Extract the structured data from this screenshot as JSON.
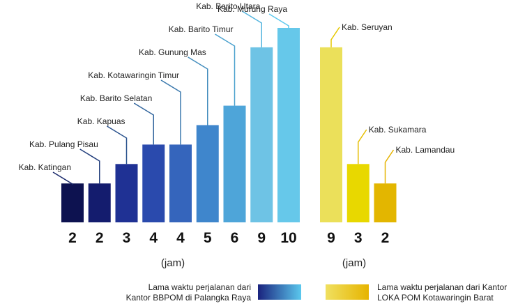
{
  "chart_data": {
    "type": "bar",
    "ylim": [
      0,
      10
    ],
    "groups": [
      {
        "unit_label": "(jam)",
        "legend": {
          "line1": "Lama waktu perjalanan dari",
          "line2": "Kantor BBPOM di Palangka Raya",
          "gradient": [
            "#1a237e",
            "#5bc8ee"
          ]
        },
        "leader_color": "#1a2a6c",
        "leader_color_end": "#5bc8ee",
        "bars": [
          {
            "category": "Kab. Katingan",
            "value": 2,
            "color": "#0d1250"
          },
          {
            "category": "Kab. Pulang Pisau",
            "value": 2,
            "color": "#141c6e"
          },
          {
            "category": "Kab. Kapuas",
            "value": 3,
            "color": "#1f3194"
          },
          {
            "category": "Kab. Barito Selatan",
            "value": 4,
            "color": "#2a4aad"
          },
          {
            "category": "Kab. Kotawaringin Timur",
            "value": 4,
            "color": "#3565bc"
          },
          {
            "category": "Kab. Gunung Mas",
            "value": 5,
            "color": "#3f86cc"
          },
          {
            "category": "Kab. Barito Timur",
            "value": 6,
            "color": "#4ea5d9"
          },
          {
            "category": "Kab. Barito Utara",
            "value": 9,
            "color": "#6ec3e5"
          },
          {
            "category": "Kab. Murung Raya",
            "value": 10,
            "color": "#66c8ea"
          }
        ]
      },
      {
        "unit_label": "(jam)",
        "legend": {
          "line1": "Lama waktu perjalanan dari Kantor",
          "line2": "LOKA POM Kotawaringin Barat",
          "gradient": [
            "#f0e060",
            "#e6b400"
          ]
        },
        "leader_color": "#e6c800",
        "leader_color_end": "#e6b400",
        "bars": [
          {
            "category": "Kab. Seruyan",
            "value": 9,
            "color": "#ebe05a"
          },
          {
            "category": "Kab. Sukamara",
            "value": 3,
            "color": "#e8d800"
          },
          {
            "category": "Kab. Lamandau",
            "value": 2,
            "color": "#e3b600"
          }
        ]
      }
    ]
  }
}
